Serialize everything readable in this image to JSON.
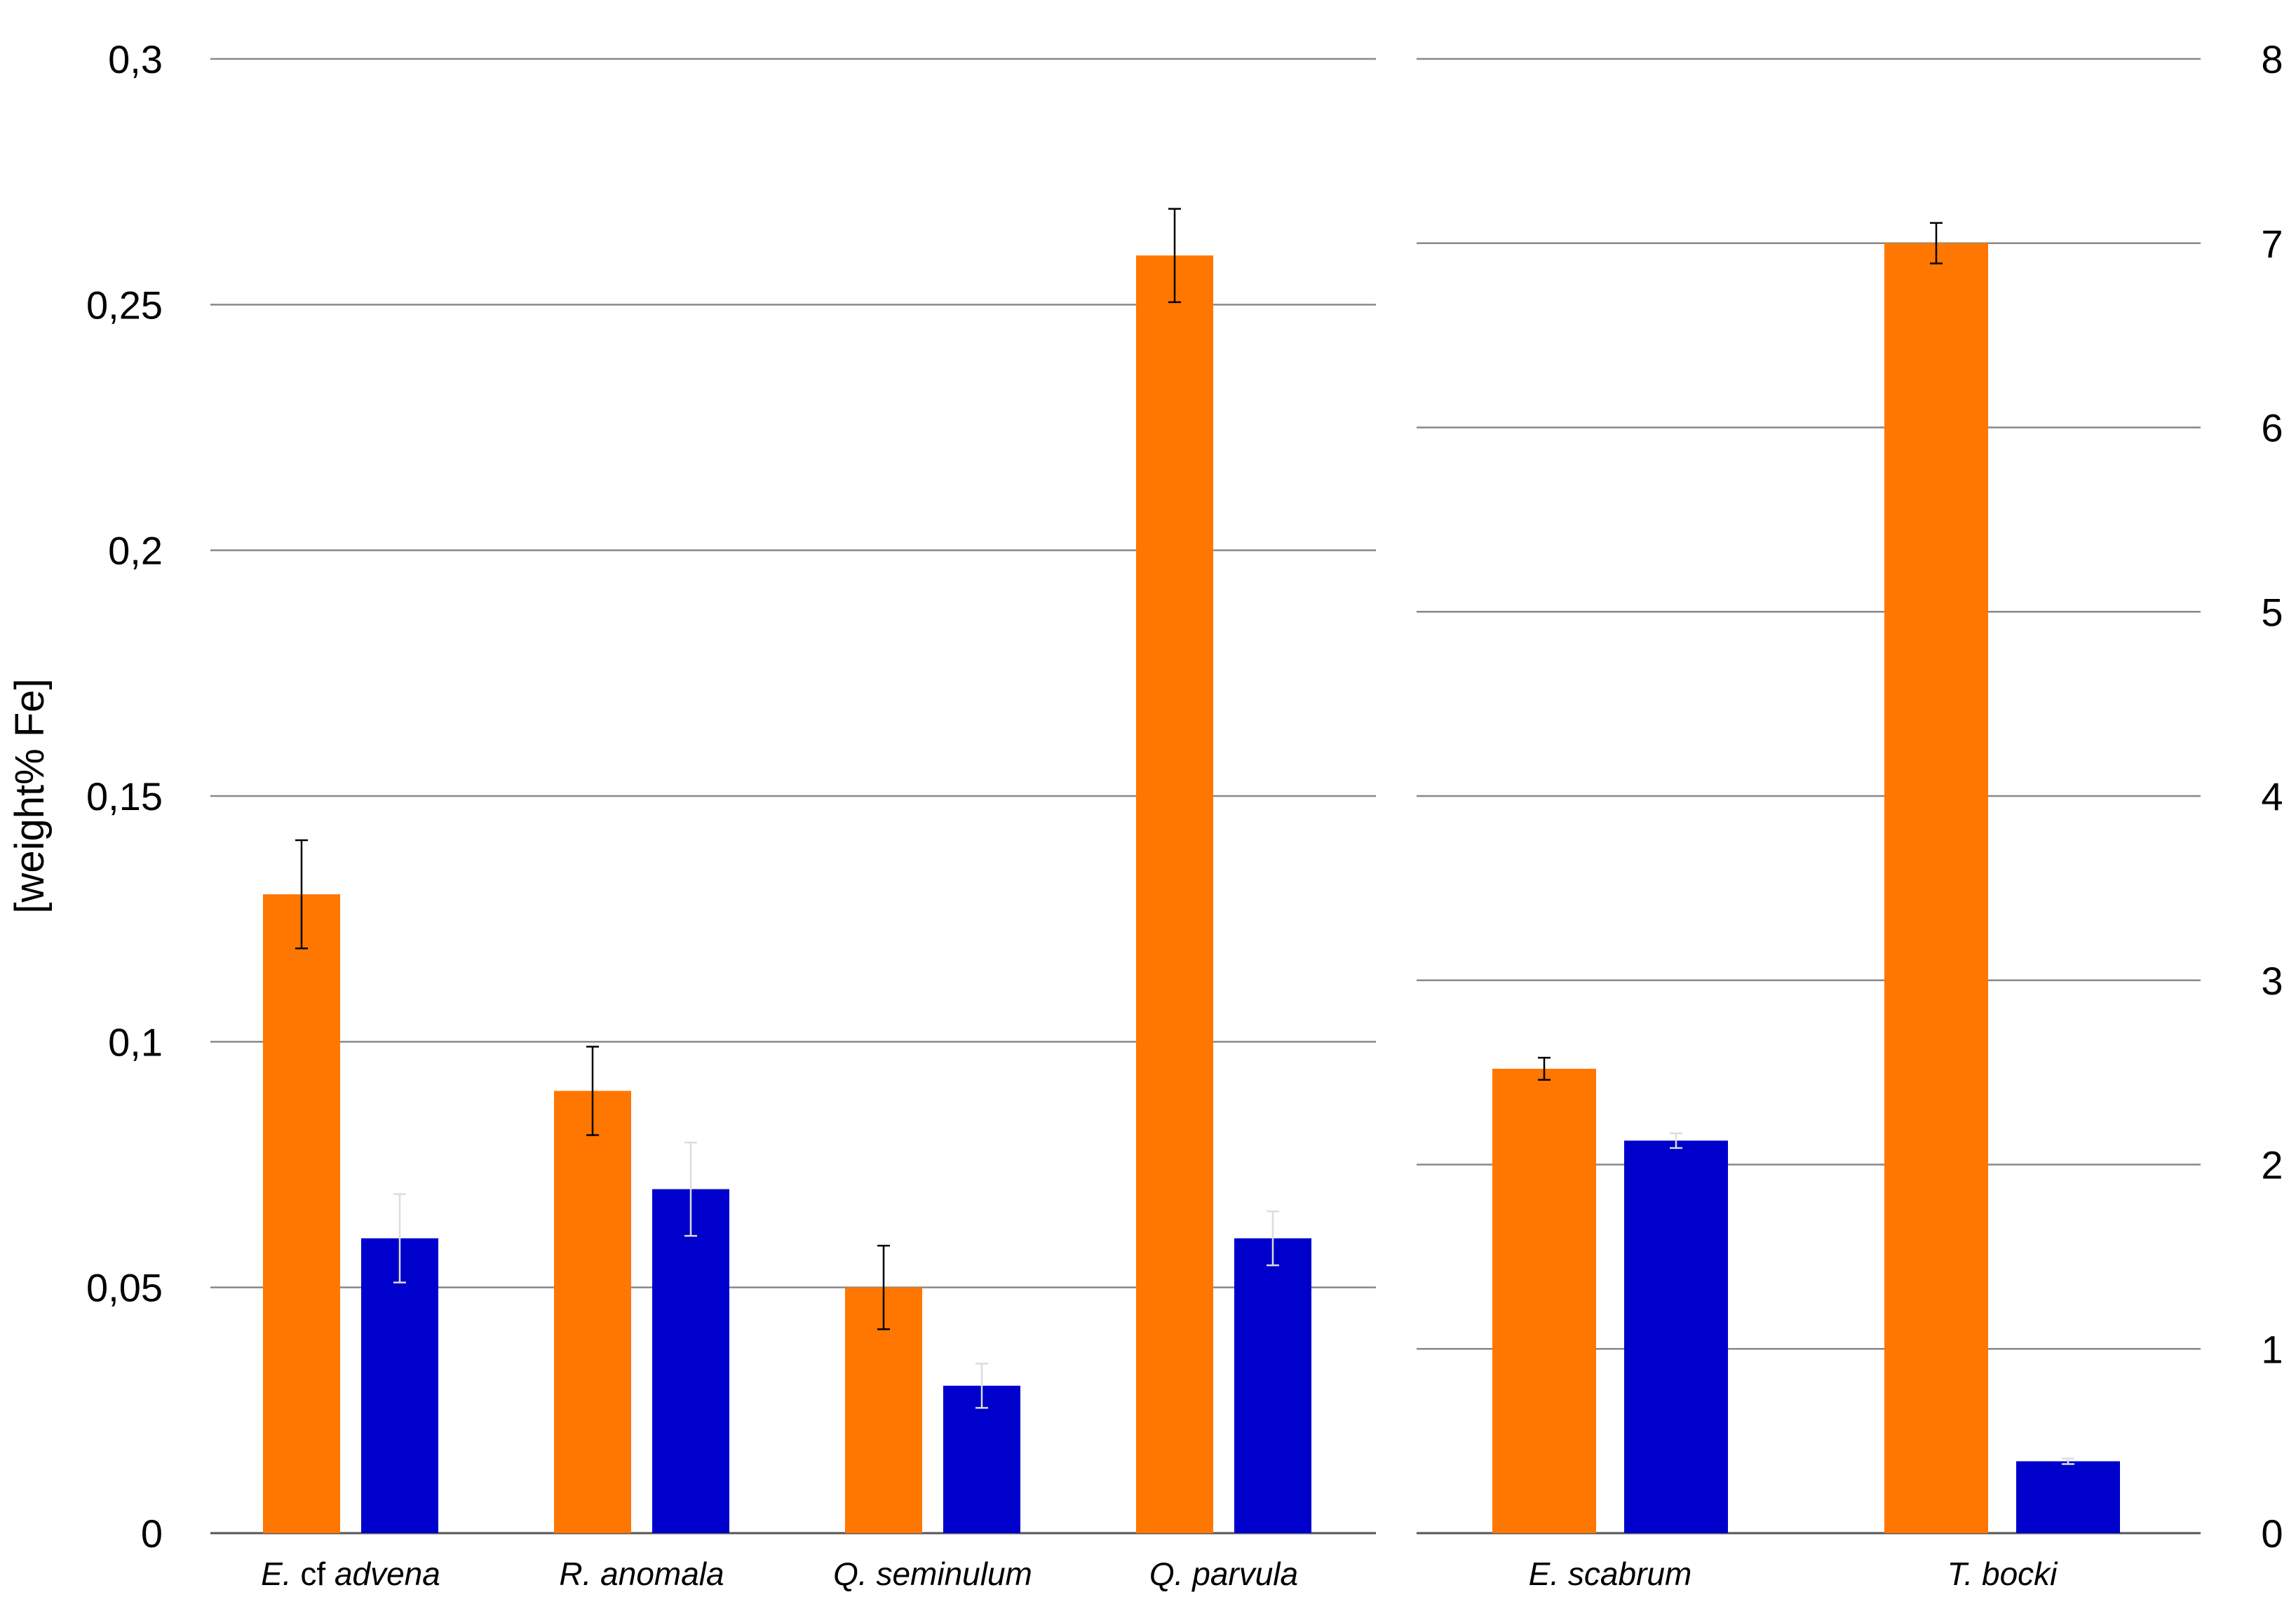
{
  "chart_data": [
    {
      "type": "bar",
      "ylabel": "[weight% Fe]",
      "ylim": [
        0,
        0.3
      ],
      "yticks": [
        "0",
        "0,05",
        "0,1",
        "0,15",
        "0,2",
        "0,25",
        "0,3"
      ],
      "yaxis_side": "left",
      "grid": true,
      "categories": [
        {
          "parts": [
            {
              "text": "E.",
              "italic": true
            },
            {
              "text": " cf ",
              "italic": false
            },
            {
              "text": "advena",
              "italic": true
            }
          ]
        },
        {
          "parts": [
            {
              "text": "R. anomala",
              "italic": true
            }
          ]
        },
        {
          "parts": [
            {
              "text": "Q. seminulum",
              "italic": true
            }
          ]
        },
        {
          "parts": [
            {
              "text": "Q. parvula",
              "italic": true
            }
          ]
        }
      ],
      "series": [
        {
          "color": "#FF7700",
          "values": [
            0.13,
            0.09,
            0.05,
            0.26
          ],
          "errors": [
            0.011,
            0.009,
            0.0085,
            0.0095
          ],
          "error_color": "#000000"
        },
        {
          "color": "#0000CC",
          "values": [
            0.06,
            0.07,
            0.03,
            0.06
          ],
          "errors": [
            0.009,
            0.0095,
            0.0045,
            0.0055
          ],
          "error_color": "#dddddd"
        }
      ]
    },
    {
      "type": "bar",
      "ylabel": "",
      "ylim": [
        0,
        8
      ],
      "yticks": [
        "0",
        "1",
        "2",
        "3",
        "4",
        "5",
        "6",
        "7",
        "8"
      ],
      "yaxis_side": "right",
      "grid": true,
      "categories": [
        {
          "parts": [
            {
              "text": "E. scabrum",
              "italic": true
            }
          ]
        },
        {
          "parts": [
            {
              "text": "T. bocki",
              "italic": true
            }
          ]
        }
      ],
      "series": [
        {
          "color": "#FF7700",
          "values": [
            2.52,
            7.0
          ],
          "errors": [
            0.06,
            0.11
          ],
          "error_color": "#000000"
        },
        {
          "color": "#0000CC",
          "values": [
            2.13,
            0.39
          ],
          "errors": [
            0.04,
            0.015
          ],
          "error_color": "#dddddd"
        }
      ]
    }
  ]
}
